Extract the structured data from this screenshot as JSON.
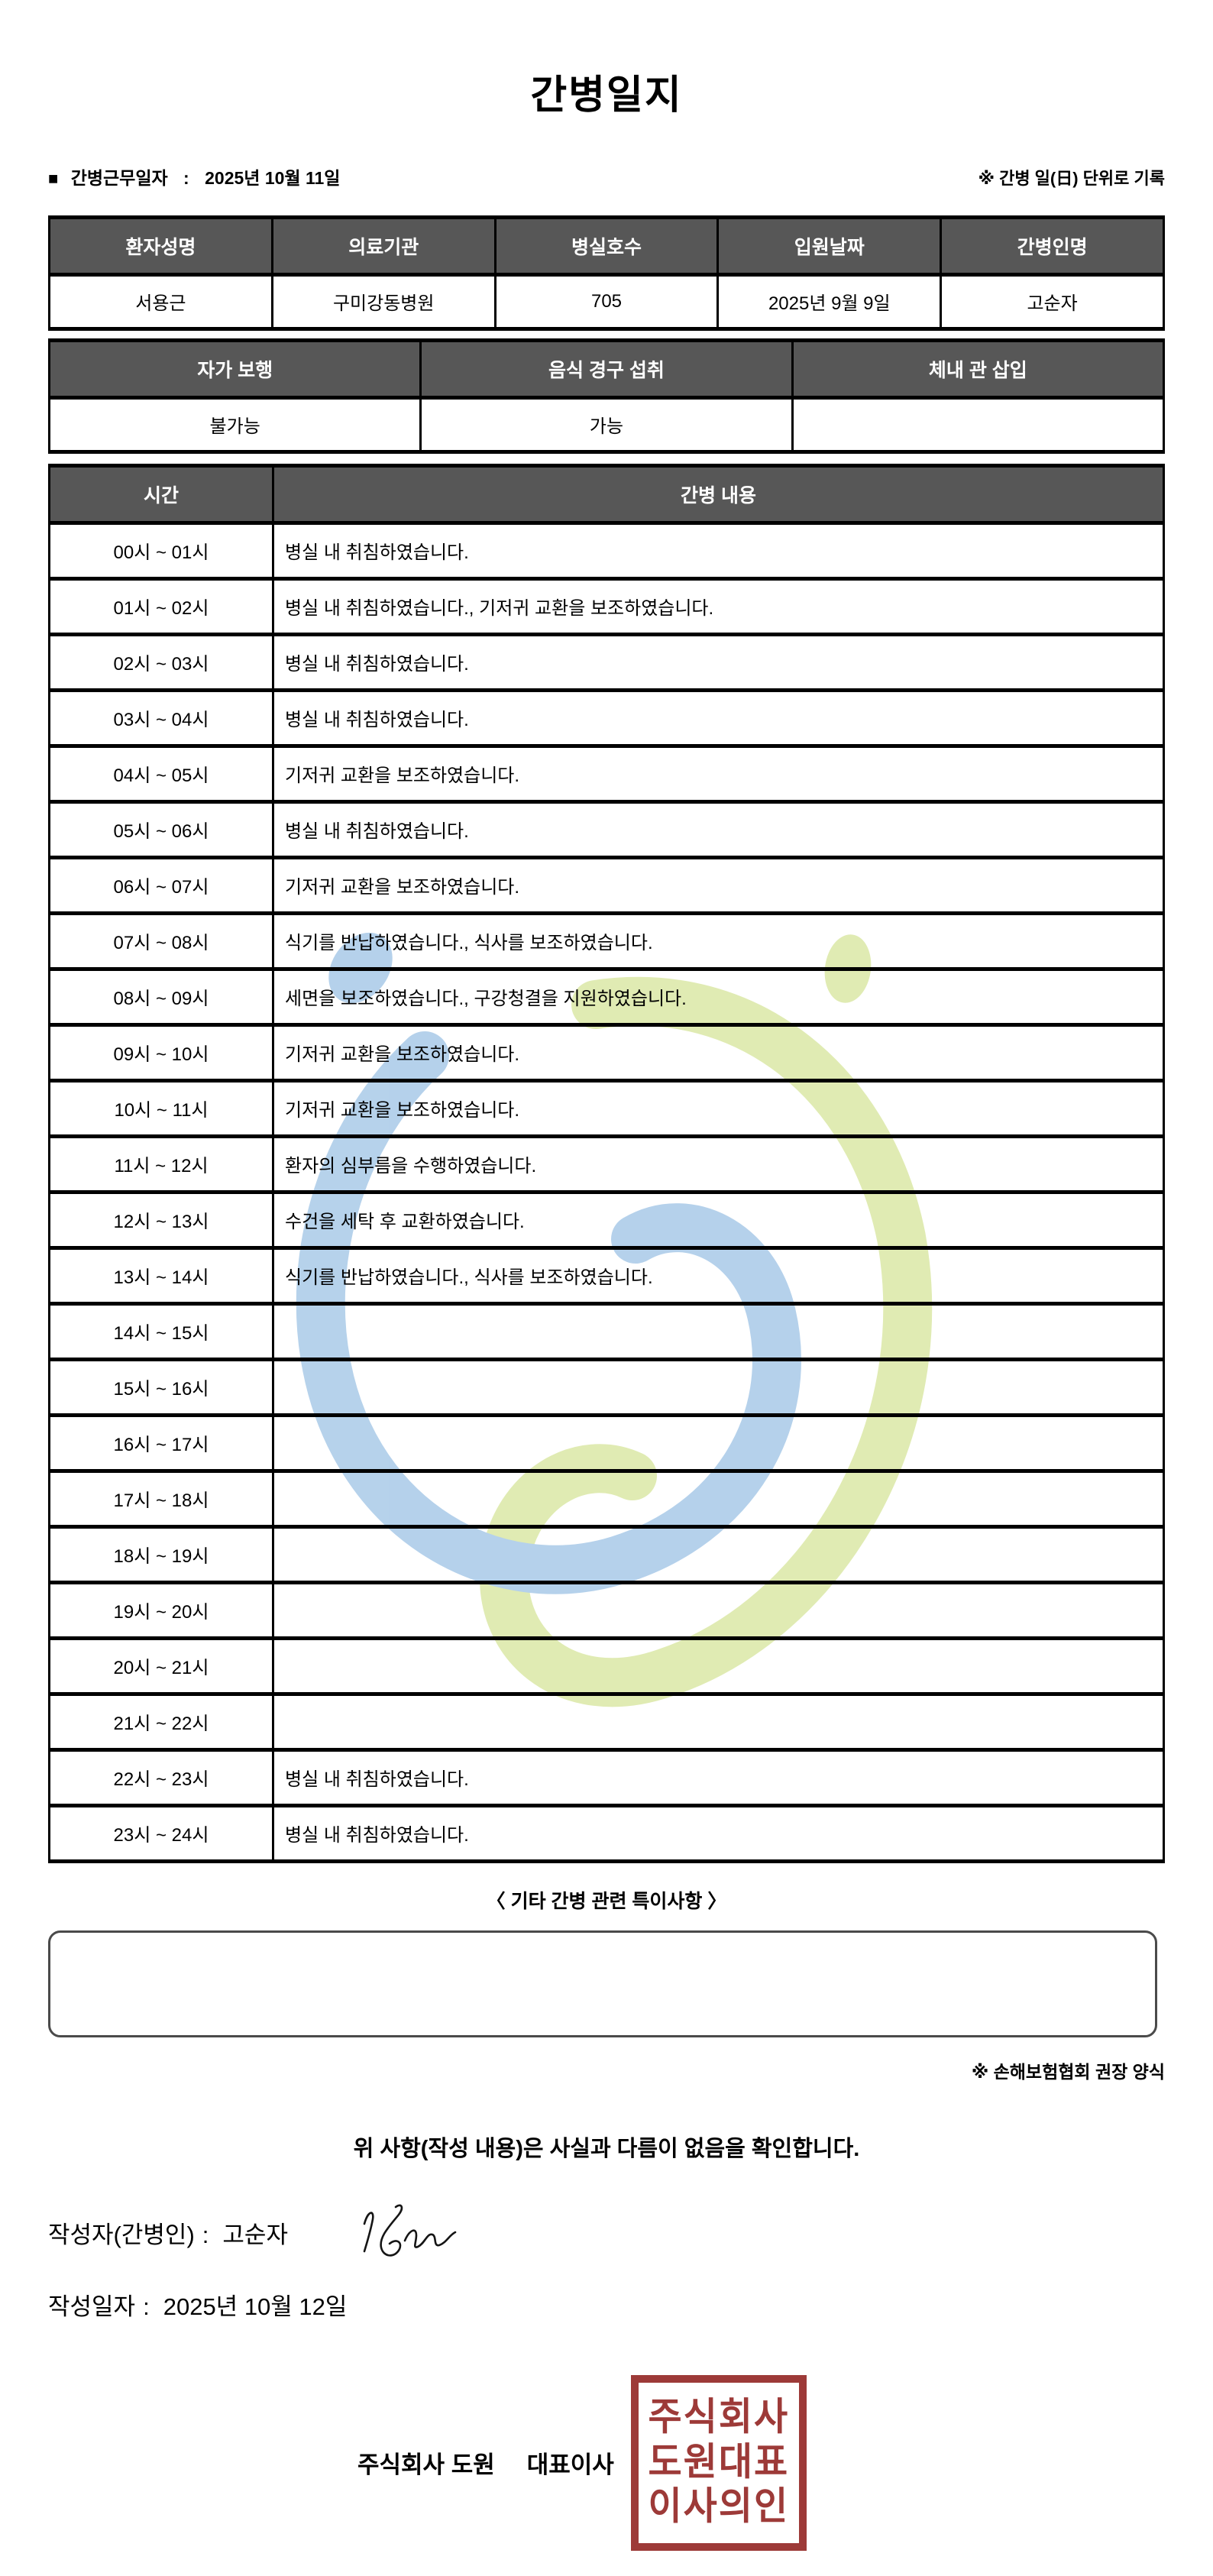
{
  "title": "간병일지",
  "meta": {
    "bullet": "■",
    "work_date_label": "간병근무일자",
    "colon": ":",
    "work_date_value": "2025년 10월 11일",
    "unit_note": "※ 간병 일(日) 단위로 기록"
  },
  "patient_info": {
    "headers": [
      "환자성명",
      "의료기관",
      "병실호수",
      "입원날짜",
      "간병인명"
    ],
    "values": [
      "서용근",
      "구미강동병원",
      "705",
      "2025년 9월 9일",
      "고순자"
    ]
  },
  "patient_status": {
    "headers": [
      "자가 보행",
      "음식 경구 섭취",
      "체내 관 삽입"
    ],
    "values": [
      "불가능",
      "가능",
      ""
    ]
  },
  "care_log": {
    "headers": [
      "시간",
      "간병 내용"
    ],
    "rows": [
      {
        "time": "00시 ~ 01시",
        "content": "병실 내 취침하였습니다."
      },
      {
        "time": "01시 ~ 02시",
        "content": "병실 내 취침하였습니다., 기저귀 교환을 보조하였습니다."
      },
      {
        "time": "02시 ~ 03시",
        "content": "병실 내 취침하였습니다."
      },
      {
        "time": "03시 ~ 04시",
        "content": "병실 내 취침하였습니다."
      },
      {
        "time": "04시 ~ 05시",
        "content": "기저귀 교환을 보조하였습니다."
      },
      {
        "time": "05시 ~ 06시",
        "content": "병실 내 취침하였습니다."
      },
      {
        "time": "06시 ~ 07시",
        "content": "기저귀 교환을 보조하였습니다."
      },
      {
        "time": "07시 ~ 08시",
        "content": "식기를 반납하였습니다., 식사를 보조하였습니다."
      },
      {
        "time": "08시 ~ 09시",
        "content": "세면을 보조하였습니다., 구강청결을 지원하였습니다."
      },
      {
        "time": "09시 ~ 10시",
        "content": "기저귀 교환을 보조하였습니다."
      },
      {
        "time": "10시 ~ 11시",
        "content": "기저귀 교환을 보조하였습니다."
      },
      {
        "time": "11시 ~ 12시",
        "content": "환자의 심부름을 수행하였습니다."
      },
      {
        "time": "12시 ~ 13시",
        "content": "수건을 세탁 후 교환하였습니다."
      },
      {
        "time": "13시 ~ 14시",
        "content": "식기를 반납하였습니다., 식사를 보조하였습니다."
      },
      {
        "time": "14시 ~ 15시",
        "content": ""
      },
      {
        "time": "15시 ~ 16시",
        "content": ""
      },
      {
        "time": "16시 ~ 17시",
        "content": ""
      },
      {
        "time": "17시 ~ 18시",
        "content": ""
      },
      {
        "time": "18시 ~ 19시",
        "content": ""
      },
      {
        "time": "19시 ~ 20시",
        "content": ""
      },
      {
        "time": "20시 ~ 21시",
        "content": ""
      },
      {
        "time": "21시 ~ 22시",
        "content": ""
      },
      {
        "time": "22시 ~ 23시",
        "content": "병실 내 취침하였습니다."
      },
      {
        "time": "23시 ~ 24시",
        "content": "병실 내 취침하였습니다."
      }
    ]
  },
  "notes": {
    "title": "〈 기타 간병 관련 특이사항 〉",
    "content": "",
    "form_note": "※ 손해보험협회 권장 양식"
  },
  "confirmation": "위 사항(작성 내용)은 사실과 다름이 없음을 확인합니다.",
  "footer": {
    "writer_label": "작성자(간병인)",
    "writer_colon": ":",
    "writer_name": "고순자",
    "date_label": "작성일자",
    "date_colon": ":",
    "date_value": "2025년 10월 12일",
    "company": "주식회사 도원",
    "ceo_title": "대표이사",
    "stamp_lines": [
      "주식회사",
      "도원대표",
      "이사의인"
    ]
  },
  "colors": {
    "header_bg": "#575757",
    "border_black": "#000000",
    "stamp_red": "#9d3a38",
    "watermark_blue": "#aecde9",
    "watermark_green": "#dde9ab"
  }
}
